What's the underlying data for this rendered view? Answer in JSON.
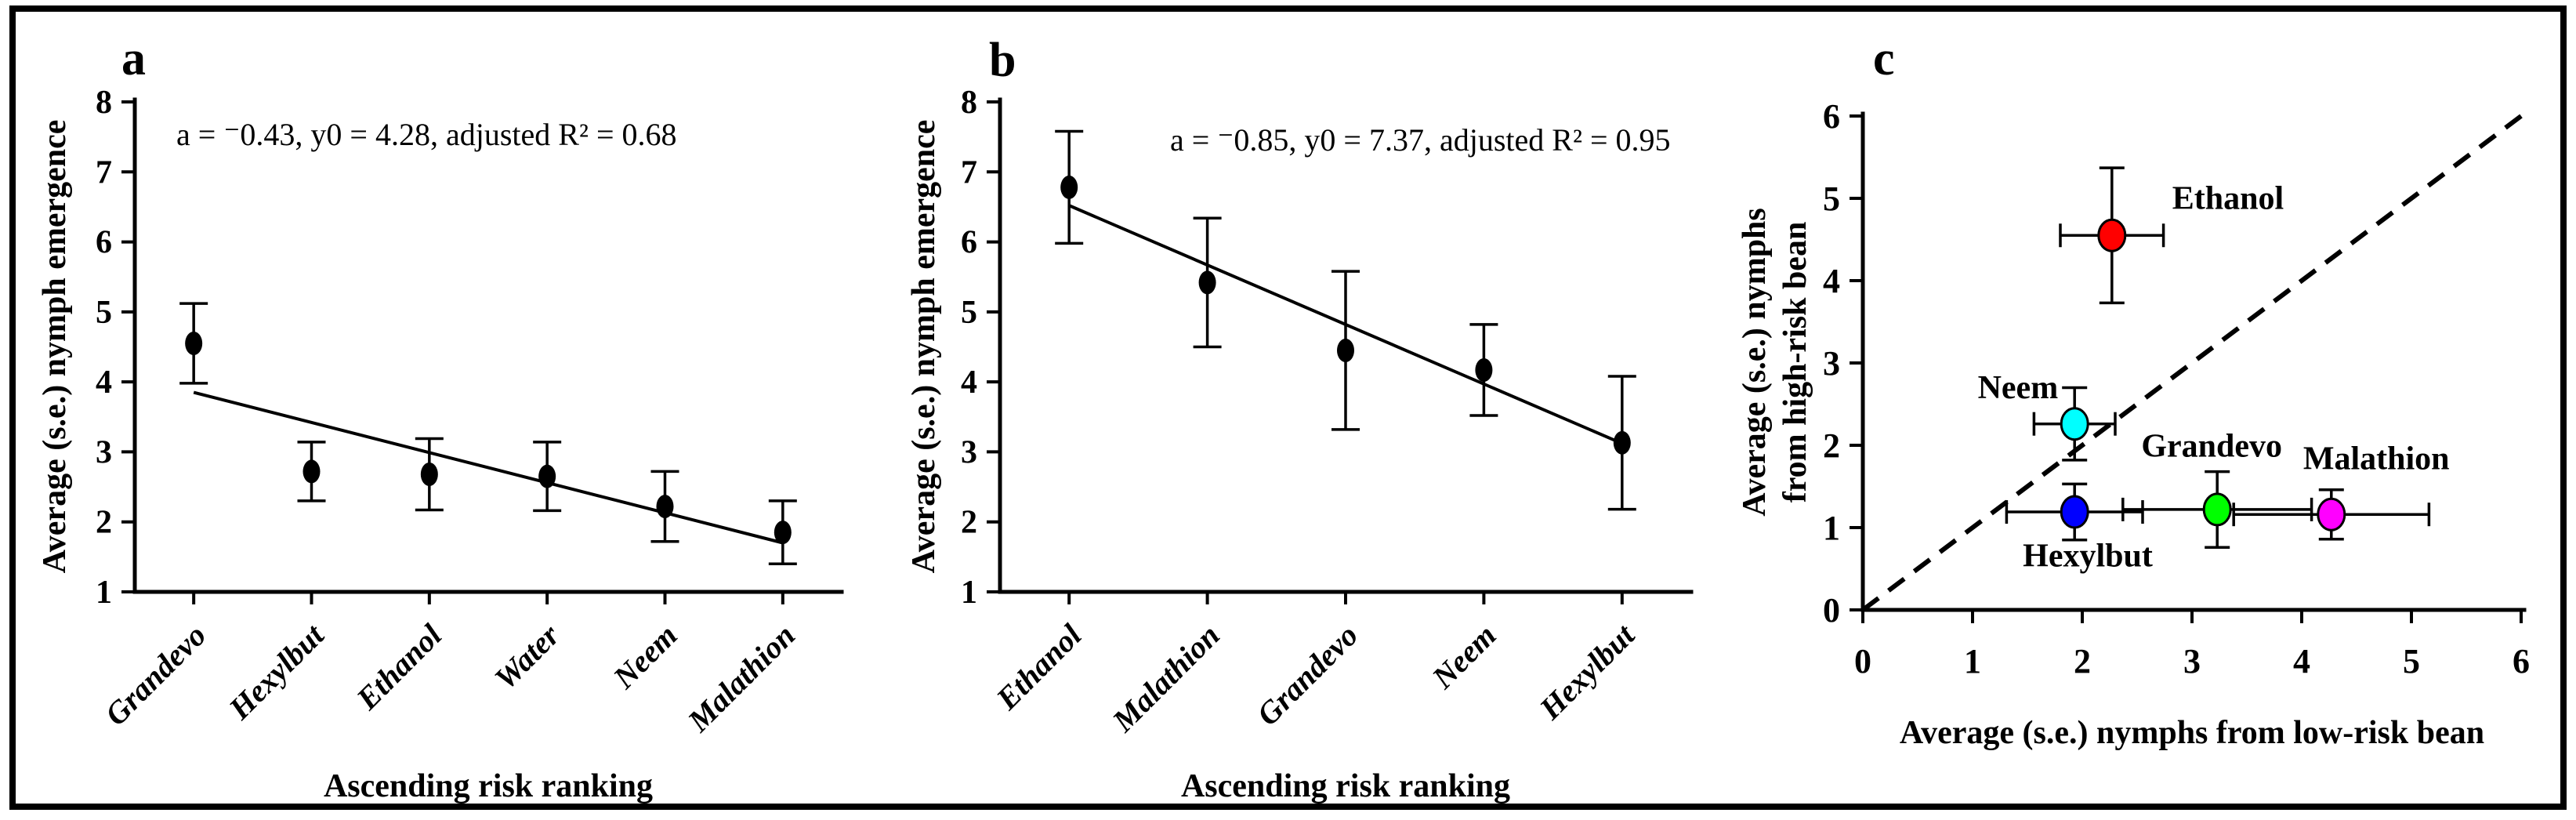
{
  "figure": {
    "background": "#ffffff",
    "border_color": "#000000"
  },
  "chart_data": [
    {
      "id": "a",
      "type": "scatter",
      "panel_label": "a",
      "annotation": "a = ⁻0.43, y0 = 4.28, adjusted R² = 0.68",
      "xlabel": "Ascending risk ranking",
      "ylabel": "Average (s.e.) nymph emergence",
      "ylim": [
        1,
        8
      ],
      "yticks": [
        1,
        2,
        3,
        4,
        5,
        6,
        7,
        8
      ],
      "categories": [
        "Grandevo",
        "Hexylbut",
        "Ethanol",
        "Water",
        "Neem",
        "Malathion"
      ],
      "emphasized_category": "Water",
      "values": [
        4.55,
        2.72,
        2.68,
        2.65,
        2.22,
        1.85
      ],
      "errors": [
        0.57,
        0.42,
        0.51,
        0.49,
        0.5,
        0.45
      ],
      "fit": {
        "slope": -0.43,
        "intercept": 4.28
      },
      "marker_color": "#000000",
      "grid": false,
      "legend": "none"
    },
    {
      "id": "b",
      "type": "scatter",
      "panel_label": "b",
      "annotation": "a = ⁻0.85, y0 = 7.37, adjusted R² = 0.95",
      "xlabel": "Ascending risk ranking",
      "ylabel": "Average (s.e.) nymph emergence",
      "ylim": [
        1,
        8
      ],
      "yticks": [
        1,
        2,
        3,
        4,
        5,
        6,
        7,
        8
      ],
      "categories": [
        "Ethanol",
        "Malathion",
        "Grandevo",
        "Neem",
        "Hexylbut"
      ],
      "emphasized_category": "",
      "values": [
        6.78,
        5.42,
        4.45,
        4.17,
        3.13
      ],
      "errors": [
        0.8,
        0.92,
        1.13,
        0.65,
        0.95
      ],
      "fit": {
        "slope": -0.85,
        "intercept": 7.37
      },
      "marker_color": "#000000",
      "grid": false,
      "legend": "none"
    },
    {
      "id": "c",
      "type": "scatter",
      "panel_label": "c",
      "xlabel": "Average (s.e.) nymphs from low-risk bean",
      "ylabel_lines": [
        "Average (s.e.) nymphs",
        "from high-risk bean"
      ],
      "xlim": [
        0,
        6
      ],
      "ylim": [
        0,
        6
      ],
      "xticks": [
        0,
        1,
        2,
        3,
        4,
        5,
        6
      ],
      "yticks": [
        0,
        1,
        2,
        3,
        4,
        5,
        6
      ],
      "identity_line": {
        "style": "dashed",
        "from": [
          0,
          0
        ],
        "to": [
          6,
          6
        ]
      },
      "grid": false,
      "legend": "none",
      "points": [
        {
          "label": "Ethanol",
          "x": 2.27,
          "y": 4.55,
          "xerr": 0.47,
          "yerr": 0.82,
          "color": "#ff0000",
          "label_anchor": "start",
          "label_x": 2.82,
          "label_y": 4.87
        },
        {
          "label": "Neem",
          "x": 1.93,
          "y": 2.26,
          "xerr": 0.37,
          "yerr": 0.44,
          "color": "#00ffff",
          "label_anchor": "end",
          "label_x": 1.78,
          "label_y": 2.57
        },
        {
          "label": "Hexylbut",
          "x": 1.93,
          "y": 1.19,
          "xerr": 0.62,
          "yerr": 0.34,
          "color": "#0000ff",
          "label_anchor": "middle",
          "label_x": 2.05,
          "label_y": 0.53
        },
        {
          "label": "Grandevo",
          "x": 3.23,
          "y": 1.22,
          "xerr": 0.86,
          "yerr": 0.46,
          "color": "#00ff00",
          "label_anchor": "middle",
          "label_x": 3.18,
          "label_y": 1.86
        },
        {
          "label": "Malathion",
          "x": 4.27,
          "y": 1.16,
          "xerr": 0.89,
          "yerr": 0.3,
          "color": "#ff00ff",
          "label_anchor": "middle",
          "label_x": 4.68,
          "label_y": 1.71
        }
      ]
    }
  ]
}
